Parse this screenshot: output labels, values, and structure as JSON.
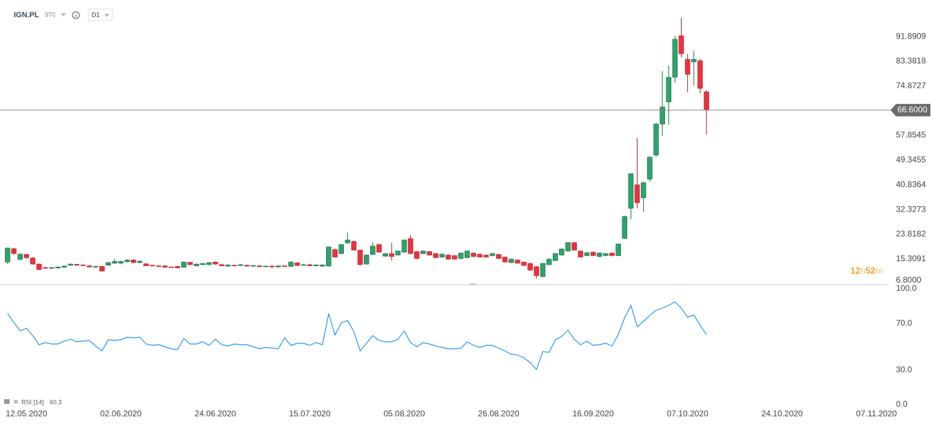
{
  "header": {
    "symbol": "IGN.PL",
    "market": "STC",
    "interval": "D1"
  },
  "countdown": [
    "12",
    "h",
    "52",
    "m"
  ],
  "chart_data": {
    "type": "candlestick",
    "up_color": "#2ea36c",
    "down_color": "#e8333f",
    "ohlc": [
      [
        14.3,
        19.3,
        13.6,
        19.1
      ],
      [
        18.9,
        19.2,
        16.8,
        17.2
      ],
      [
        15.2,
        17.3,
        14.9,
        17.0
      ],
      [
        16.9,
        17.1,
        15.3,
        15.8
      ],
      [
        15.7,
        16.0,
        13.4,
        13.6
      ],
      [
        13.6,
        13.8,
        11.5,
        11.7
      ],
      [
        12.4,
        12.7,
        12.0,
        12.2
      ],
      [
        12.2,
        12.6,
        11.9,
        12.4
      ],
      [
        12.3,
        12.8,
        12.0,
        12.6
      ],
      [
        12.5,
        13.1,
        12.3,
        12.9
      ],
      [
        13.2,
        13.8,
        13.0,
        13.6
      ],
      [
        13.5,
        13.7,
        13.0,
        13.2
      ],
      [
        13.3,
        13.5,
        12.9,
        13.1
      ],
      [
        13.0,
        13.2,
        12.4,
        12.6
      ],
      [
        12.6,
        12.9,
        12.3,
        12.8
      ],
      [
        12.8,
        13.0,
        11.0,
        11.2
      ],
      [
        13.2,
        14.4,
        13.0,
        14.1
      ],
      [
        13.9,
        15.4,
        13.6,
        14.5
      ],
      [
        13.9,
        14.8,
        13.5,
        14.5
      ],
      [
        14.4,
        15.3,
        14.2,
        15.0
      ],
      [
        15.0,
        15.3,
        13.9,
        14.1
      ],
      [
        14.1,
        14.8,
        13.9,
        14.6
      ],
      [
        13.7,
        13.9,
        12.8,
        13.0
      ],
      [
        13.2,
        13.4,
        12.8,
        13.0
      ],
      [
        13.0,
        13.2,
        12.7,
        12.9
      ],
      [
        13.0,
        13.2,
        12.3,
        12.5
      ],
      [
        12.6,
        12.8,
        12.3,
        12.5
      ],
      [
        12.8,
        13.0,
        12.1,
        12.3
      ],
      [
        12.5,
        14.5,
        12.3,
        14.3
      ],
      [
        14.2,
        14.4,
        13.2,
        13.4
      ],
      [
        13.0,
        13.8,
        12.8,
        13.6
      ],
      [
        13.4,
        14.0,
        13.2,
        13.8
      ],
      [
        13.4,
        14.3,
        13.2,
        14.1
      ],
      [
        14.3,
        14.5,
        13.4,
        13.6
      ],
      [
        13.4,
        13.6,
        12.8,
        13.0
      ],
      [
        12.9,
        13.5,
        12.7,
        13.3
      ],
      [
        13.2,
        13.4,
        12.8,
        13.0
      ],
      [
        13.1,
        13.6,
        12.9,
        13.4
      ],
      [
        13.2,
        13.4,
        12.7,
        12.9
      ],
      [
        12.9,
        13.3,
        12.7,
        13.1
      ],
      [
        13.0,
        13.2,
        12.5,
        12.7
      ],
      [
        12.7,
        13.1,
        12.5,
        12.9
      ],
      [
        12.9,
        13.1,
        12.4,
        12.6
      ],
      [
        12.6,
        13.2,
        12.4,
        13.0
      ],
      [
        13.0,
        13.2,
        12.7,
        12.9
      ],
      [
        12.8,
        14.6,
        12.6,
        14.3
      ],
      [
        14.0,
        14.2,
        12.9,
        13.1
      ],
      [
        13.2,
        13.6,
        13.0,
        13.4
      ],
      [
        13.4,
        13.6,
        12.8,
        13.0
      ],
      [
        13.0,
        13.5,
        12.8,
        13.3
      ],
      [
        12.9,
        13.5,
        12.7,
        13.3
      ],
      [
        12.9,
        19.7,
        12.7,
        19.5
      ],
      [
        18.6,
        18.9,
        15.8,
        16.0
      ],
      [
        17.2,
        20.5,
        17.0,
        20.3
      ],
      [
        20.9,
        24.5,
        20.5,
        21.9
      ],
      [
        21.4,
        21.7,
        18.2,
        18.4
      ],
      [
        18.4,
        18.6,
        13.2,
        13.4
      ],
      [
        13.6,
        16.9,
        13.4,
        16.7
      ],
      [
        16.9,
        21.1,
        16.7,
        19.8
      ],
      [
        20.3,
        20.6,
        17.5,
        17.7
      ],
      [
        16.3,
        17.4,
        16.1,
        17.2
      ],
      [
        17.2,
        21.0,
        14.8,
        16.2
      ],
      [
        16.7,
        18.3,
        16.5,
        18.1
      ],
      [
        17.7,
        22.1,
        17.5,
        21.9
      ],
      [
        22.4,
        23.6,
        17.0,
        17.2
      ],
      [
        17.9,
        18.1,
        15.3,
        15.5
      ],
      [
        17.2,
        18.3,
        17.0,
        18.1
      ],
      [
        17.9,
        18.1,
        16.5,
        16.7
      ],
      [
        17.2,
        17.4,
        15.6,
        15.8
      ],
      [
        16.0,
        17.2,
        15.8,
        17.0
      ],
      [
        16.7,
        16.9,
        15.1,
        15.3
      ],
      [
        16.5,
        16.7,
        15.1,
        15.3
      ],
      [
        15.5,
        17.6,
        15.3,
        17.4
      ],
      [
        15.8,
        18.3,
        15.6,
        18.1
      ],
      [
        17.4,
        17.6,
        16.0,
        16.2
      ],
      [
        17.0,
        17.2,
        15.8,
        16.0
      ],
      [
        16.7,
        16.9,
        15.8,
        16.0
      ],
      [
        16.5,
        17.4,
        16.3,
        17.2
      ],
      [
        16.9,
        17.1,
        15.3,
        15.5
      ],
      [
        16.0,
        16.2,
        14.1,
        14.3
      ],
      [
        14.1,
        15.5,
        13.9,
        15.3
      ],
      [
        15.0,
        15.2,
        13.7,
        13.9
      ],
      [
        14.3,
        14.5,
        12.9,
        13.1
      ],
      [
        13.8,
        14.0,
        11.3,
        11.5
      ],
      [
        12.7,
        12.9,
        8.7,
        9.6
      ],
      [
        9.3,
        14.0,
        9.1,
        13.8
      ],
      [
        13.4,
        15.5,
        13.2,
        15.3
      ],
      [
        14.8,
        17.4,
        14.6,
        17.2
      ],
      [
        16.7,
        19.0,
        16.5,
        18.8
      ],
      [
        18.1,
        21.2,
        17.9,
        21.0
      ],
      [
        21.0,
        21.2,
        18.2,
        18.4
      ],
      [
        18.1,
        18.3,
        15.8,
        16.0
      ],
      [
        16.5,
        17.7,
        16.3,
        17.5
      ],
      [
        17.7,
        17.9,
        16.3,
        16.5
      ],
      [
        16.2,
        17.6,
        16.0,
        17.4
      ],
      [
        16.5,
        17.4,
        16.3,
        17.2
      ],
      [
        17.4,
        17.6,
        16.3,
        16.5
      ],
      [
        16.5,
        20.7,
        16.3,
        20.5
      ],
      [
        22.4,
        30.2,
        22.2,
        30.0
      ],
      [
        32.8,
        44.9,
        29.0,
        44.7
      ],
      [
        40.9,
        57.0,
        32.8,
        34.7
      ],
      [
        36.4,
        42.0,
        31.5,
        41.6
      ],
      [
        42.8,
        50.8,
        41.9,
        50.4
      ],
      [
        51.1,
        62.2,
        50.5,
        61.8
      ],
      [
        61.8,
        80.0,
        57.8,
        67.7
      ],
      [
        69.4,
        82.0,
        61.5,
        77.9
      ],
      [
        77.9,
        92.2,
        76.0,
        91.0
      ],
      [
        92.2,
        98.3,
        84.8,
        86.0
      ],
      [
        84.1,
        86.0,
        72.7,
        78.9
      ],
      [
        83.2,
        87.0,
        75.0,
        84.1
      ],
      [
        83.6,
        84.3,
        72.3,
        74.1
      ],
      [
        72.9,
        73.5,
        58.2,
        66.6
      ]
    ],
    "ylim": [
      6.5,
      104.5
    ],
    "yticks": [
      {
        "value": 6.8,
        "label": "6.8000"
      },
      {
        "value": 15.3091,
        "label": "15.3091"
      },
      {
        "value": 23.8182,
        "label": "23.8182"
      },
      {
        "value": 32.3273,
        "label": "32.3273"
      },
      {
        "value": 40.8364,
        "label": "40.8364"
      },
      {
        "value": 49.3455,
        "label": "49.3455"
      },
      {
        "value": 57.8545,
        "label": "57.8545"
      },
      {
        "value": 74.8727,
        "label": "74.8727"
      },
      {
        "value": 83.3818,
        "label": "83.3818"
      },
      {
        "value": 91.8909,
        "label": "91.8909"
      }
    ],
    "xlim": [
      -1.2,
      140
    ],
    "xticks": [
      {
        "value": 3,
        "label": "12.05.2020"
      },
      {
        "value": 18,
        "label": "02.06.2020"
      },
      {
        "value": 33,
        "label": "24.06.2020"
      },
      {
        "value": 48,
        "label": "15.07.2020"
      },
      {
        "value": 63,
        "label": "05.08.2020"
      },
      {
        "value": 78,
        "label": "26.08.2020"
      },
      {
        "value": 93,
        "label": "16.09.2020"
      },
      {
        "value": 108,
        "label": "07.10.2020"
      },
      {
        "value": 123,
        "label": "24.10.2020"
      },
      {
        "value": 138,
        "label": "07.11.2020"
      }
    ],
    "last_price": {
      "value": 66.6,
      "label": "66.6000"
    },
    "rsi": {
      "type": "line",
      "name": "RSI [14]",
      "color": "#2196f3",
      "ylim": [
        0,
        100
      ],
      "yticks": [
        {
          "value": 100,
          "label": "100.0"
        },
        {
          "value": 70,
          "label": "70.0"
        },
        {
          "value": 30,
          "label": "30.0"
        },
        {
          "value": 0,
          "label": "0.0"
        }
      ],
      "values": [
        78.6,
        71,
        63.7,
        66,
        59.5,
        51.8,
        53.6,
        52.4,
        52.4,
        54.8,
        56.5,
        54.2,
        54.8,
        55.4,
        50.6,
        46.4,
        56,
        55.4,
        56,
        58.3,
        57.7,
        58.3,
        52.4,
        51.2,
        51.8,
        50,
        48.2,
        47.6,
        57.1,
        52.4,
        52.4,
        54.2,
        51.2,
        56.5,
        51.8,
        50.6,
        52.4,
        51.8,
        51.8,
        50,
        48.2,
        49.4,
        48.8,
        48.2,
        57.7,
        51.2,
        53,
        53,
        51.2,
        53.6,
        51.8,
        78.6,
        60.1,
        70.8,
        72.6,
        63.1,
        46.4,
        53,
        59.5,
        55.4,
        54.2,
        54.2,
        56.5,
        63.7,
        53.6,
        50,
        53.6,
        52.4,
        50.6,
        49.4,
        48.2,
        48.2,
        48.8,
        54.2,
        51.2,
        49.4,
        51.2,
        51.2,
        48.8,
        46.4,
        43.5,
        42.9,
        40.5,
        36.3,
        30.4,
        45.8,
        45.2,
        55.9,
        58.9,
        64.3,
        56.5,
        51.8,
        54.8,
        51.2,
        51.8,
        53,
        50.6,
        60.7,
        75,
        85.7,
        67.3,
        72,
        77,
        81.5,
        83.3,
        85.7,
        88.7,
        83.3,
        75.6,
        77.4,
        68.5,
        60.3
      ]
    }
  }
}
